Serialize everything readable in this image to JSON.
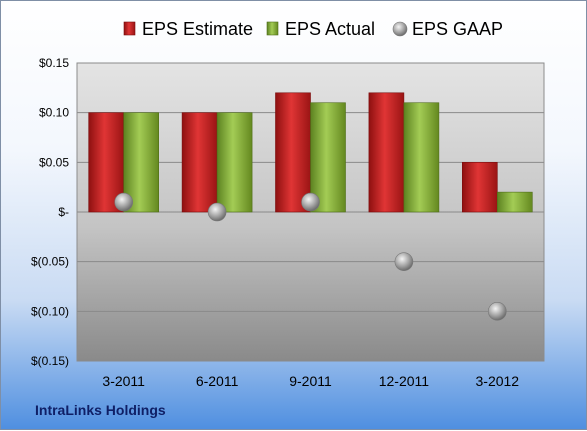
{
  "company": "IntraLinks Holdings",
  "colors": {
    "estimate": "#cc1f1f",
    "actual": "#86b236",
    "gaap": "#9a9a9a"
  },
  "chart_data": {
    "type": "bar",
    "title": "",
    "xlabel": "",
    "ylabel": "",
    "categories": [
      "3-2011",
      "6-2011",
      "9-2011",
      "12-2011",
      "3-2012"
    ],
    "series": [
      {
        "name": "EPS Estimate",
        "kind": "bar",
        "values": [
          0.1,
          0.1,
          0.12,
          0.12,
          0.05
        ]
      },
      {
        "name": "EPS Actual",
        "kind": "bar",
        "values": [
          0.1,
          0.1,
          0.11,
          0.11,
          0.02
        ]
      },
      {
        "name": "EPS GAAP",
        "kind": "marker",
        "values": [
          0.01,
          0.0,
          0.01,
          -0.05,
          -0.1
        ]
      }
    ],
    "ylim": [
      -0.15,
      0.15
    ],
    "yticks": [
      0.15,
      0.1,
      0.05,
      0.0,
      -0.05,
      -0.1,
      -0.15
    ],
    "ytick_labels": [
      "$0.15",
      "$0.10",
      "$0.05",
      "$-",
      "$(0.05)",
      "$(0.10)",
      "$(0.15)"
    ],
    "grid": true,
    "legend_position": "top"
  }
}
